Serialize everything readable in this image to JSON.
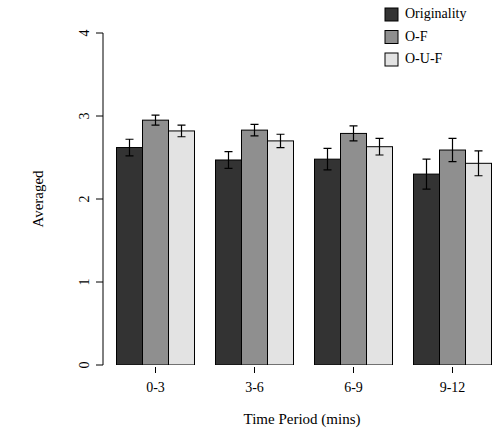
{
  "chart_data": {
    "type": "bar",
    "x_label": "Time Period (mins)",
    "y_label": "Averaged",
    "categories": [
      "0-3",
      "3-6",
      "6-9",
      "9-12"
    ],
    "series": [
      {
        "name": "Originality",
        "color": "#333333",
        "values": [
          2.62,
          2.47,
          2.48,
          2.3
        ],
        "errors": [
          0.1,
          0.1,
          0.13,
          0.18
        ]
      },
      {
        "name": "O-F",
        "color": "#8f8f8f",
        "values": [
          2.95,
          2.83,
          2.79,
          2.59
        ],
        "errors": [
          0.06,
          0.07,
          0.09,
          0.14
        ]
      },
      {
        "name": "O-U-F",
        "color": "#e3e3e3",
        "values": [
          2.82,
          2.7,
          2.63,
          2.43
        ],
        "errors": [
          0.07,
          0.08,
          0.1,
          0.15
        ]
      }
    ],
    "ylim": [
      0,
      4
    ],
    "yticks": [
      0,
      1,
      2,
      3,
      4
    ],
    "grid": false,
    "legend": "top-right"
  }
}
